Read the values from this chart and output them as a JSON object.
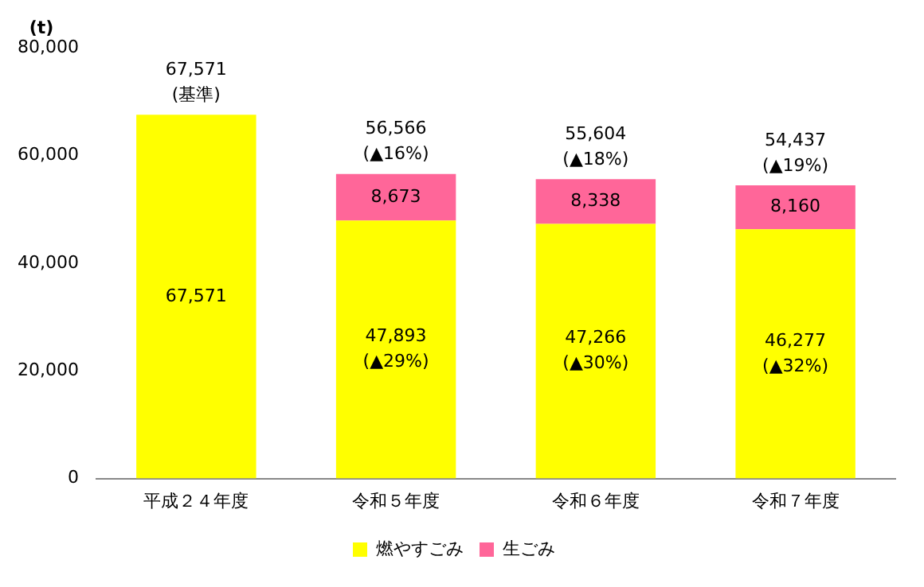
{
  "chart_data": {
    "type": "bar",
    "stacked": true,
    "ylabel": "(t)",
    "categories": [
      "平成２４年度",
      "令和５年度",
      "令和６年度",
      "令和７年度"
    ],
    "series": [
      {
        "name": "燃やすごみ",
        "color": "#ffff00",
        "values": [
          67571,
          47893,
          47266,
          46277
        ],
        "value_labels": [
          "67,571",
          "47,893\n(▲29%)",
          "47,266\n(▲30%)",
          "46,277\n(▲32%)"
        ]
      },
      {
        "name": "生ごみ",
        "color": "#ff6699",
        "values": [
          null,
          8673,
          8338,
          8160
        ],
        "value_labels": [
          null,
          "8,673",
          "8,338",
          "8,160"
        ]
      }
    ],
    "totals": [
      "67,571\n(基準)",
      "56,566\n(▲16%)",
      "55,604\n(▲18%)",
      "54,437\n(▲19%)"
    ],
    "ylim": [
      0,
      80000
    ],
    "yticks": [
      {
        "value": 0,
        "label": "0"
      },
      {
        "value": 20000,
        "label": "20,000"
      },
      {
        "value": 40000,
        "label": "40,000"
      },
      {
        "value": 60000,
        "label": "60,000"
      },
      {
        "value": 80000,
        "label": "80,000"
      }
    ],
    "grid": false,
    "legend": "bottom"
  }
}
